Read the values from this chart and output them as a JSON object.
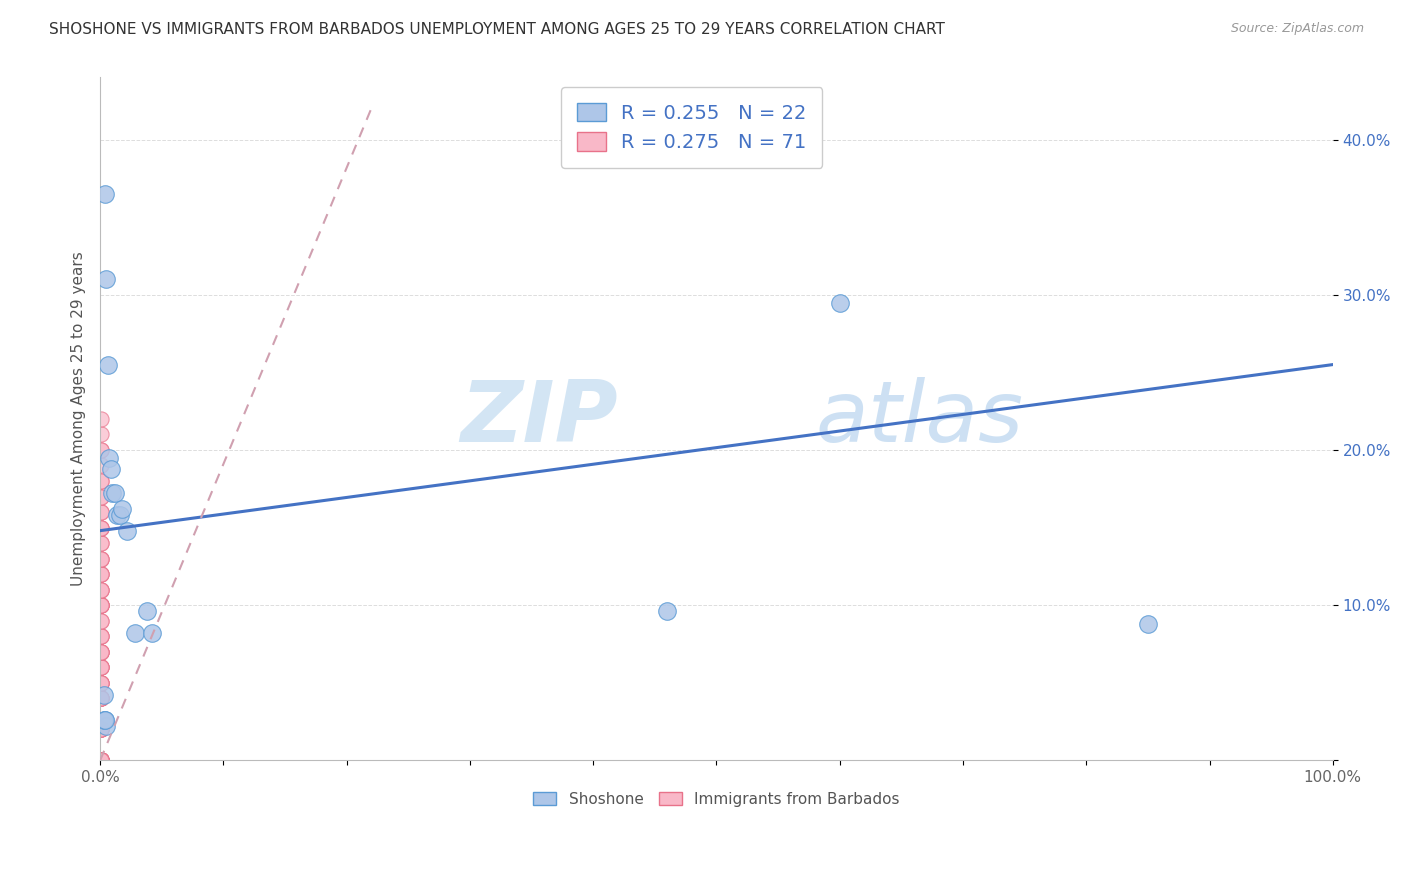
{
  "title": "SHOSHONE VS IMMIGRANTS FROM BARBADOS UNEMPLOYMENT AMONG AGES 25 TO 29 YEARS CORRELATION CHART",
  "source": "Source: ZipAtlas.com",
  "ylabel": "Unemployment Among Ages 25 to 29 years",
  "xlim": [
    0,
    1.0
  ],
  "ylim": [
    0,
    0.44
  ],
  "xticks": [
    0.0,
    0.1,
    0.2,
    0.3,
    0.4,
    0.5,
    0.6,
    0.7,
    0.8,
    0.9,
    1.0
  ],
  "xticklabels": [
    "0.0%",
    "",
    "",
    "",
    "",
    "",
    "",
    "",
    "",
    "",
    "100.0%"
  ],
  "yticks": [
    0.0,
    0.1,
    0.2,
    0.3,
    0.4
  ],
  "yticklabels": [
    "",
    "10.0%",
    "20.0%",
    "30.0%",
    "40.0%"
  ],
  "shoshone_color": "#aec6e8",
  "barbados_color": "#f9b8c8",
  "shoshone_edge": "#5b9bd5",
  "barbados_edge": "#e8728a",
  "trend_blue": "#4472c4",
  "trend_pink": "#d0a0b0",
  "legend_R_shoshone": "0.255",
  "legend_N_shoshone": "22",
  "legend_R_barbados": "0.275",
  "legend_N_barbados": "71",
  "watermark_zip": "ZIP",
  "watermark_atlas": "atlas",
  "shoshone_x": [
    0.004,
    0.005,
    0.006,
    0.007,
    0.009,
    0.01,
    0.012,
    0.014,
    0.016,
    0.018,
    0.022,
    0.028,
    0.038,
    0.042,
    0.004,
    0.005,
    0.003,
    0.003,
    0.004,
    0.46,
    0.6,
    0.85
  ],
  "shoshone_y": [
    0.365,
    0.31,
    0.255,
    0.195,
    0.188,
    0.172,
    0.172,
    0.158,
    0.158,
    0.162,
    0.148,
    0.082,
    0.096,
    0.082,
    0.026,
    0.022,
    0.042,
    0.026,
    0.026,
    0.096,
    0.295,
    0.088
  ],
  "barbados_x": [
    0.001,
    0.001,
    0.001,
    0.001,
    0.001,
    0.001,
    0.001,
    0.001,
    0.001,
    0.001,
    0.001,
    0.001,
    0.001,
    0.001,
    0.001,
    0.001,
    0.001,
    0.001,
    0.001,
    0.001,
    0.001,
    0.001,
    0.001,
    0.001,
    0.001,
    0.001,
    0.001,
    0.001,
    0.001,
    0.001,
    0.001,
    0.001,
    0.001,
    0.001,
    0.001,
    0.001,
    0.001,
    0.001,
    0.001,
    0.001,
    0.001,
    0.001,
    0.001,
    0.001,
    0.001,
    0.001,
    0.001,
    0.001,
    0.001,
    0.001,
    0.001,
    0.001,
    0.001,
    0.001,
    0.001,
    0.001,
    0.001,
    0.001,
    0.001,
    0.001,
    0.001,
    0.001,
    0.001,
    0.001,
    0.001,
    0.001,
    0.001,
    0.001,
    0.001,
    0.001,
    0.001
  ],
  "barbados_y": [
    0.0,
    0.0,
    0.0,
    0.0,
    0.0,
    0.0,
    0.0,
    0.0,
    0.0,
    0.0,
    0.0,
    0.0,
    0.0,
    0.0,
    0.02,
    0.02,
    0.02,
    0.02,
    0.02,
    0.04,
    0.04,
    0.04,
    0.04,
    0.04,
    0.05,
    0.05,
    0.05,
    0.05,
    0.06,
    0.06,
    0.06,
    0.06,
    0.07,
    0.07,
    0.07,
    0.07,
    0.08,
    0.08,
    0.08,
    0.09,
    0.09,
    0.1,
    0.1,
    0.1,
    0.1,
    0.1,
    0.11,
    0.11,
    0.11,
    0.12,
    0.12,
    0.12,
    0.13,
    0.13,
    0.13,
    0.14,
    0.14,
    0.15,
    0.15,
    0.15,
    0.16,
    0.16,
    0.17,
    0.17,
    0.18,
    0.18,
    0.19,
    0.2,
    0.2,
    0.21,
    0.22
  ],
  "trend_sh_x0": 0.0,
  "trend_sh_y0": 0.148,
  "trend_sh_x1": 1.0,
  "trend_sh_y1": 0.255,
  "trend_bb_x0": 0.0,
  "trend_bb_y0": 0.0,
  "trend_bb_x1": 0.22,
  "trend_bb_y1": 0.42
}
